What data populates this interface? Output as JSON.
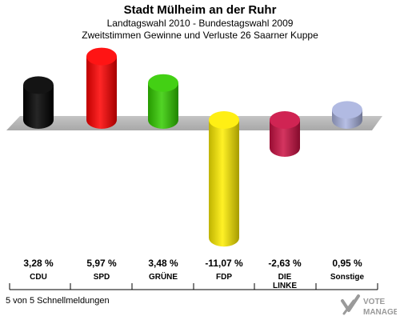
{
  "header": {
    "title": "Stadt Mülheim an der Ruhr",
    "subtitle1": "Landtagswahl 2010 - Bundestagswahl 2009",
    "subtitle2": "Zweitstimmen Gewinne und Verluste 26 Saarner Kuppe"
  },
  "footer": {
    "note": "5 von 5 Schnellmeldungen"
  },
  "logo": {
    "line1": "VOTE",
    "line2": "MANAGER"
  },
  "chart_data": {
    "type": "bar",
    "categories": [
      "CDU",
      "SPD",
      "GRÜNE",
      "FDP",
      "DIE LINKE",
      "Sonstige"
    ],
    "values": [
      3.28,
      5.97,
      3.48,
      -11.07,
      -2.63,
      0.95
    ],
    "value_labels": [
      "3,28 %",
      "5,97 %",
      "3,48 %",
      "-11,07 %",
      "-2,63 %",
      "0,95 %"
    ],
    "colors": [
      "#000000",
      "#ff0000",
      "#33cc00",
      "#ffee00",
      "#cc1144",
      "#aab4e0"
    ]
  }
}
